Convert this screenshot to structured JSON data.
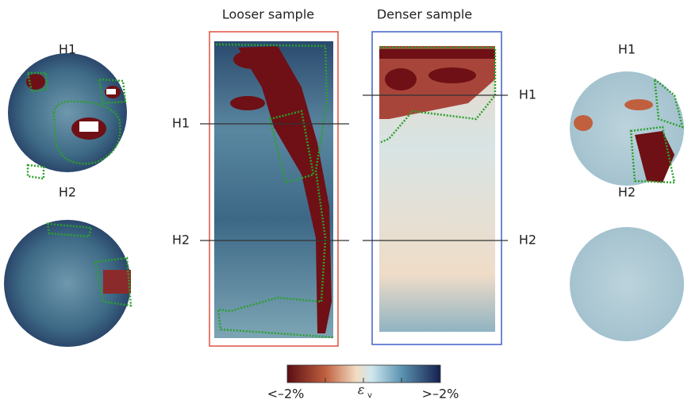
{
  "left_slices": [
    {
      "label": "H1"
    },
    {
      "label": "H2"
    }
  ],
  "looser_sample": {
    "title": "Looser sample",
    "sections": [
      "H1",
      "H2"
    ]
  },
  "denser_sample": {
    "title": "Denser sample",
    "sections": [
      "H1",
      "H2"
    ]
  },
  "right_slices": [
    {
      "label": "H1"
    },
    {
      "label": "H2"
    }
  ],
  "colorbar": {
    "min_label": "<–2%",
    "symbol": "ε",
    "subscript": "v",
    "max_label": ">–2%"
  }
}
